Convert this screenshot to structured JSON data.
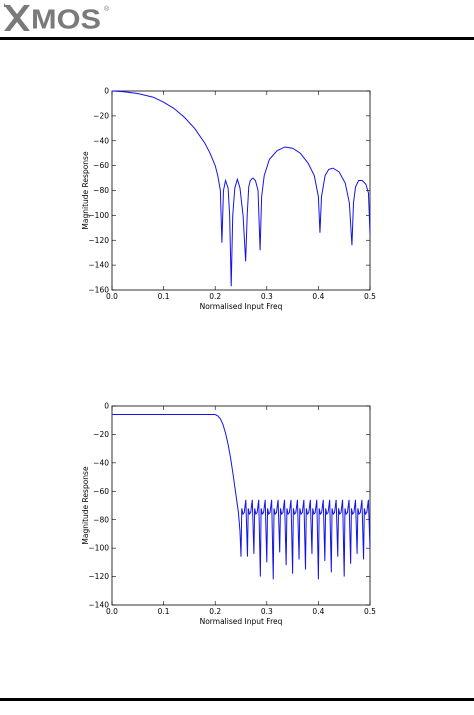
{
  "brand": {
    "name": "XMOS",
    "registered_mark": "®",
    "colors": {
      "logo": "#7a7a7a",
      "rule": "#000000",
      "curve": "#1414e6"
    }
  },
  "chart_data": [
    {
      "type": "line",
      "title": "",
      "xlabel": "Normalised Input Freq",
      "ylabel": "Magnitude Response",
      "xlim": [
        0.0,
        0.5
      ],
      "ylim": [
        -160,
        0
      ],
      "xticks": [
        "0.0",
        "0.1",
        "0.2",
        "0.3",
        "0.4",
        "0.5"
      ],
      "yticks": [
        "0",
        "−20",
        "−40",
        "−60",
        "−80",
        "−100",
        "−120",
        "−140",
        "−160"
      ],
      "grid": false,
      "series": [
        {
          "x": [
            0.0,
            0.02,
            0.05,
            0.08,
            0.1,
            0.12,
            0.14,
            0.16,
            0.18,
            0.19,
            0.2,
            0.205,
            0.21,
            0.213,
            0.216,
            0.22,
            0.225,
            0.228,
            0.231,
            0.234,
            0.238,
            0.243,
            0.248,
            0.254,
            0.259,
            0.262,
            0.265,
            0.268,
            0.273,
            0.278,
            0.283,
            0.287,
            0.29,
            0.295,
            0.305,
            0.32,
            0.335,
            0.35,
            0.365,
            0.38,
            0.392,
            0.4,
            0.403,
            0.406,
            0.413,
            0.42,
            0.428,
            0.44,
            0.452,
            0.46,
            0.465,
            0.468,
            0.472,
            0.478,
            0.485,
            0.492,
            0.497,
            0.5
          ],
          "y": [
            0,
            -0.5,
            -2,
            -5,
            -9,
            -14,
            -21,
            -30,
            -42,
            -50,
            -60,
            -68,
            -80,
            -122,
            -80,
            -72,
            -78,
            -100,
            -157,
            -100,
            -78,
            -71,
            -78,
            -100,
            -137,
            -100,
            -77,
            -72,
            -70,
            -72,
            -80,
            -128,
            -85,
            -68,
            -55,
            -48,
            -45,
            -46,
            -50,
            -58,
            -68,
            -85,
            -114,
            -85,
            -68,
            -63,
            -62,
            -65,
            -74,
            -90,
            -124,
            -90,
            -77,
            -72,
            -72,
            -75,
            -82,
            -115
          ]
        }
      ]
    },
    {
      "type": "line",
      "title": "",
      "xlabel": "Normalised Input Freq",
      "ylabel": "Magnitude Response",
      "xlim": [
        0.0,
        0.5
      ],
      "ylim": [
        -140,
        0
      ],
      "xticks": [
        "0.0",
        "0.1",
        "0.2",
        "0.3",
        "0.4",
        "0.5"
      ],
      "yticks": [
        "0",
        "−20",
        "−40",
        "−60",
        "−80",
        "−100",
        "−120",
        "−140"
      ],
      "grid": false,
      "series": [
        {
          "flat_level": -6,
          "passband": {
            "x_start": 0.0,
            "x_end": 0.2,
            "y": -6
          },
          "transition": [
            [
              0.2,
              -6
            ],
            [
              0.205,
              -7
            ],
            [
              0.21,
              -9
            ],
            [
              0.215,
              -13
            ],
            [
              0.22,
              -19
            ],
            [
              0.225,
              -27
            ],
            [
              0.23,
              -37
            ],
            [
              0.235,
              -49
            ],
            [
              0.24,
              -62
            ],
            [
              0.245,
              -75
            ],
            [
              0.248,
              -88
            ],
            [
              0.25,
              -106
            ]
          ],
          "stopband": {
            "x_start": 0.25,
            "x_end": 0.5,
            "lobe_peak": -76,
            "lobes": 20,
            "null_depths": [
              -106,
              -104,
              -120,
              -110,
              -122,
              -103,
              -112,
              -118,
              -108,
              -115,
              -104,
              -122,
              -109,
              -117,
              -106,
              -120,
              -111,
              -104,
              -108,
              -100
            ]
          }
        }
      ]
    }
  ]
}
